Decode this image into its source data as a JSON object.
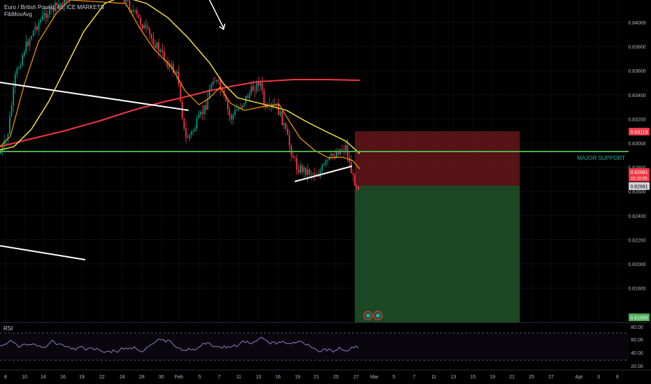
{
  "header": {
    "symbol_line": "Euro / British Pound, 4h, ICE MARKETS",
    "indicator": "FibMovAvg"
  },
  "chart_data": {
    "type": "candlestick",
    "y_ticks": [
      "0.84000",
      "0.83800",
      "0.83600",
      "0.83400",
      "0.83200",
      "0.83000",
      "0.82800",
      "0.82600",
      "0.82400",
      "0.82200",
      "0.82000",
      "0.81800"
    ],
    "x_ticks": [
      "8",
      "10",
      "14",
      "16",
      "19",
      "22",
      "24",
      "28",
      "30",
      "Feb",
      "5",
      "7",
      "11",
      "13",
      "16",
      "19",
      "21",
      "25",
      "27",
      "Mar",
      "5",
      "7",
      "11",
      "13",
      "15",
      "19",
      "21",
      "25",
      "27",
      "Apr",
      "3",
      "6"
    ],
    "price_labels": {
      "stop": "0.83119",
      "current": "0.82681",
      "current_timer": "02:20:05",
      "entry": "0.82681",
      "target": "0.81589"
    },
    "annotations": {
      "support_text": "MAJOR SUPPORT"
    },
    "rsi": {
      "label": "RSI",
      "ticks": [
        "80.00",
        "60.00",
        "40.00",
        "20.00"
      ]
    },
    "colors": {
      "up": "#089981",
      "down": "#f23645",
      "ma_yellow": "#ffeb3b",
      "ma_orange": "#ff9800",
      "ma_red": "#f23645",
      "support": "#4caf50",
      "loss_zone": "#5c1518",
      "profit_zone": "#1e4d26",
      "rsi_line": "#7e57c2"
    }
  }
}
